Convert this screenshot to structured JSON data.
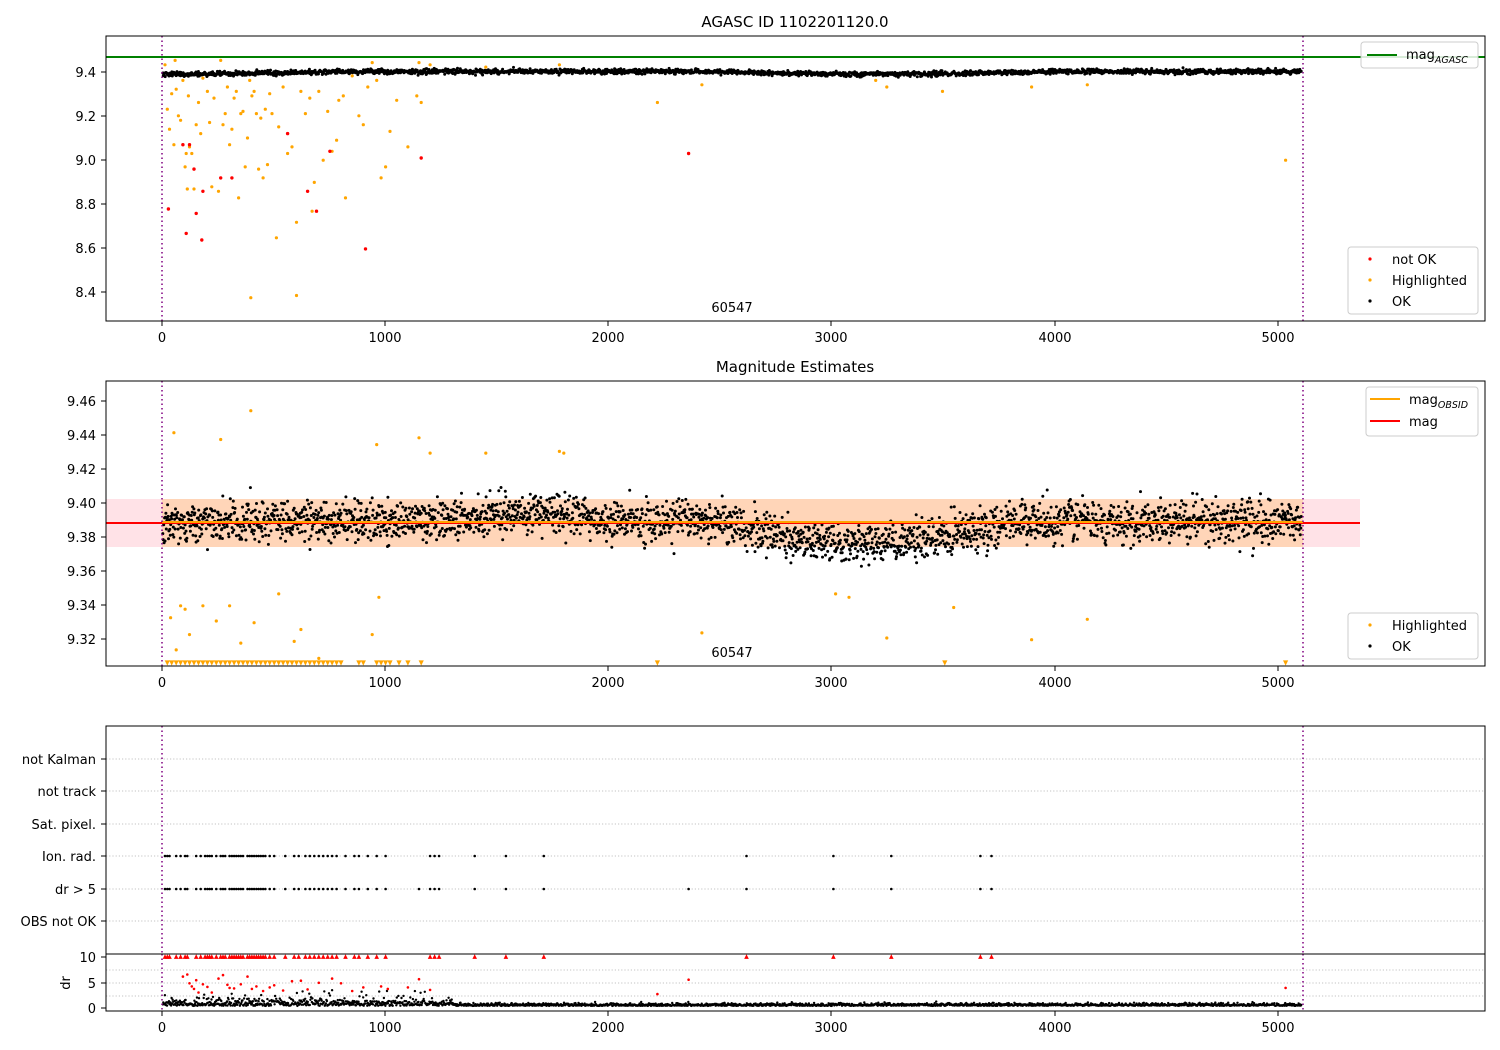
{
  "colors": {
    "ok": "#000000",
    "highlighted": "#ffa500",
    "not_ok": "#ff0000",
    "mag_agasc": "#008000",
    "mag_obsid": "#ffa500",
    "mag": "#ff0000",
    "band": "#ff9fb0",
    "obs_boundary": "#800080"
  },
  "chart_data": [
    {
      "type": "scatter",
      "title": "AGASC ID 1102201120.0",
      "xlabel": "",
      "ylabel": "",
      "xlim": [
        -255,
        5935
      ],
      "ylim": [
        8.265,
        9.55
      ],
      "xticks": [
        "0",
        "1000",
        "2000",
        "3000",
        "4000",
        "5000"
      ],
      "yticks": [
        "8.4",
        "8.6",
        "8.8",
        "9.0",
        "9.2",
        "9.4"
      ],
      "mag_agasc": 9.465,
      "obs_boundaries": [
        0,
        5110
      ],
      "obs_label": "60547",
      "obs_label_x": 2550,
      "legend_lines": [
        {
          "name": "mag_AGASC",
          "label": "mag",
          "sub": "AGASC",
          "color_key": "mag_agasc"
        }
      ],
      "legend_points": [
        {
          "name": "not OK",
          "color_key": "not_ok"
        },
        {
          "name": "Highlighted",
          "color_key": "highlighted"
        },
        {
          "name": "OK",
          "color_key": "ok"
        }
      ],
      "ok_series": {
        "x_range": [
          0,
          5110
        ],
        "n": 2400,
        "profile": "ok"
      },
      "highlighted_points": [
        [
          10,
          9.42
        ],
        [
          20,
          9.22
        ],
        [
          30,
          9.13
        ],
        [
          40,
          9.29
        ],
        [
          50,
          9.06
        ],
        [
          55,
          9.44
        ],
        [
          60,
          9.31
        ],
        [
          70,
          9.19
        ],
        [
          80,
          9.17
        ],
        [
          90,
          9.35
        ],
        [
          100,
          8.96
        ],
        [
          105,
          9.02
        ],
        [
          110,
          8.86
        ],
        [
          115,
          9.28
        ],
        [
          120,
          9.05
        ],
        [
          130,
          9.02
        ],
        [
          140,
          8.86
        ],
        [
          150,
          9.15
        ],
        [
          160,
          9.25
        ],
        [
          170,
          9.11
        ],
        [
          180,
          9.36
        ],
        [
          200,
          9.3
        ],
        [
          210,
          9.16
        ],
        [
          220,
          8.87
        ],
        [
          230,
          9.27
        ],
        [
          250,
          8.85
        ],
        [
          260,
          9.44
        ],
        [
          270,
          9.15
        ],
        [
          280,
          9.2
        ],
        [
          290,
          9.32
        ],
        [
          300,
          9.06
        ],
        [
          310,
          9.13
        ],
        [
          320,
          9.27
        ],
        [
          330,
          9.3
        ],
        [
          340,
          8.82
        ],
        [
          350,
          9.2
        ],
        [
          360,
          9.21
        ],
        [
          370,
          8.96
        ],
        [
          380,
          9.09
        ],
        [
          390,
          9.35
        ],
        [
          395,
          8.37
        ],
        [
          400,
          9.28
        ],
        [
          410,
          9.3
        ],
        [
          420,
          9.2
        ],
        [
          430,
          8.95
        ],
        [
          440,
          9.18
        ],
        [
          450,
          8.91
        ],
        [
          460,
          9.22
        ],
        [
          470,
          8.97
        ],
        [
          480,
          9.29
        ],
        [
          490,
          9.2
        ],
        [
          510,
          8.64
        ],
        [
          520,
          9.14
        ],
        [
          540,
          9.32
        ],
        [
          560,
          9.02
        ],
        [
          580,
          9.05
        ],
        [
          600,
          8.38
        ],
        [
          600,
          8.71
        ],
        [
          620,
          9.3
        ],
        [
          640,
          9.2
        ],
        [
          660,
          9.27
        ],
        [
          670,
          8.76
        ],
        [
          680,
          8.89
        ],
        [
          700,
          9.3
        ],
        [
          720,
          8.99
        ],
        [
          740,
          9.21
        ],
        [
          760,
          9.03
        ],
        [
          780,
          9.08
        ],
        [
          790,
          9.26
        ],
        [
          810,
          9.28
        ],
        [
          820,
          8.82
        ],
        [
          850,
          9.37
        ],
        [
          880,
          9.19
        ],
        [
          900,
          9.15
        ],
        [
          920,
          9.32
        ],
        [
          940,
          9.43
        ],
        [
          960,
          9.35
        ],
        [
          980,
          8.91
        ],
        [
          1000,
          8.96
        ],
        [
          1020,
          9.12
        ],
        [
          1050,
          9.26
        ],
        [
          1100,
          9.05
        ],
        [
          1140,
          9.28
        ],
        [
          1150,
          9.43
        ],
        [
          1160,
          9.25
        ],
        [
          1200,
          9.42
        ],
        [
          1450,
          9.41
        ],
        [
          1780,
          9.42
        ],
        [
          2220,
          9.25
        ],
        [
          2420,
          9.33
        ],
        [
          3200,
          9.35
        ],
        [
          3250,
          9.32
        ],
        [
          3500,
          9.3
        ],
        [
          3900,
          9.32
        ],
        [
          4150,
          9.33
        ],
        [
          5040,
          8.99
        ]
      ],
      "not_ok_points": [
        [
          25,
          8.77
        ],
        [
          90,
          9.06
        ],
        [
          105,
          8.66
        ],
        [
          120,
          9.06
        ],
        [
          140,
          8.95
        ],
        [
          150,
          8.75
        ],
        [
          175,
          8.63
        ],
        [
          180,
          8.85
        ],
        [
          260,
          8.91
        ],
        [
          310,
          8.91
        ],
        [
          560,
          9.11
        ],
        [
          650,
          8.85
        ],
        [
          690,
          8.76
        ],
        [
          750,
          9.03
        ],
        [
          910,
          8.59
        ],
        [
          1160,
          9.0
        ],
        [
          2360,
          9.02
        ]
      ]
    },
    {
      "type": "scatter",
      "title": "Magnitude Estimates",
      "xlabel": "",
      "ylabel": "",
      "xlim": [
        -255,
        5935
      ],
      "ylim": [
        9.3045,
        9.4725
      ],
      "xticks": [
        "0",
        "1000",
        "2000",
        "3000",
        "4000",
        "5000"
      ],
      "yticks": [
        "9.32",
        "9.34",
        "9.36",
        "9.38",
        "9.40",
        "9.42",
        "9.44",
        "9.46"
      ],
      "mag": 9.3885,
      "mag_band": [
        9.3745,
        9.4025
      ],
      "mag_band_xrange": [
        -255,
        5365
      ],
      "mag_obsid": 9.389,
      "mag_obsid_xrange": [
        0,
        5110
      ],
      "obs_boundaries": [
        0,
        5110
      ],
      "obs_label": "60547",
      "obs_label_x": 2550,
      "legend_lines": [
        {
          "name": "mag_OBSID",
          "label": "mag",
          "sub": "OBSID",
          "color_key": "mag_obsid"
        },
        {
          "name": "mag",
          "label": "mag",
          "sub": "",
          "color_key": "mag"
        }
      ],
      "legend_points": [
        {
          "name": "Highlighted",
          "color_key": "highlighted"
        },
        {
          "name": "OK",
          "color_key": "ok"
        }
      ],
      "ok_series": {
        "x_range": [
          0,
          5110
        ],
        "n": 2600,
        "profile": "estimate"
      },
      "highlighted_points": [
        [
          35,
          9.333
        ],
        [
          50,
          9.442
        ],
        [
          60,
          9.314
        ],
        [
          80,
          9.34
        ],
        [
          100,
          9.338
        ],
        [
          120,
          9.323
        ],
        [
          180,
          9.34
        ],
        [
          240,
          9.331
        ],
        [
          260,
          9.438
        ],
        [
          300,
          9.34
        ],
        [
          350,
          9.318
        ],
        [
          395,
          9.455
        ],
        [
          410,
          9.33
        ],
        [
          520,
          9.347
        ],
        [
          590,
          9.319
        ],
        [
          620,
          9.326
        ],
        [
          700,
          9.309
        ],
        [
          940,
          9.323
        ],
        [
          960,
          9.435
        ],
        [
          970,
          9.345
        ],
        [
          1150,
          9.439
        ],
        [
          1200,
          9.43
        ],
        [
          1450,
          9.43
        ],
        [
          1780,
          9.431
        ],
        [
          1800,
          9.43
        ],
        [
          2420,
          9.324
        ],
        [
          3020,
          9.347
        ],
        [
          3080,
          9.345
        ],
        [
          3250,
          9.321
        ],
        [
          3550,
          9.339
        ],
        [
          3900,
          9.32
        ],
        [
          4150,
          9.332
        ]
      ],
      "clipped_highlighted_x": [
        20,
        40,
        60,
        80,
        100,
        120,
        140,
        160,
        180,
        200,
        220,
        240,
        260,
        280,
        300,
        320,
        340,
        360,
        380,
        400,
        420,
        440,
        460,
        480,
        500,
        520,
        540,
        560,
        580,
        600,
        620,
        640,
        660,
        680,
        700,
        720,
        740,
        760,
        780,
        800,
        880,
        900,
        960,
        980,
        1000,
        1020,
        1060,
        1100,
        1160,
        2220,
        3510,
        5040
      ]
    },
    {
      "type": "scatter",
      "title": "",
      "xlabel": "",
      "ylabel": "",
      "xlim": [
        -255,
        5935
      ],
      "categories": [
        "not Kalman",
        "not track",
        "Sat. pixel.",
        "Ion. rad.",
        "dr > 5",
        "OBS not OK"
      ],
      "obs_boundaries": [
        0,
        5110
      ],
      "flag_points": {
        "Ion. rad.": [
          10,
          20,
          30,
          60,
          80,
          100,
          110,
          150,
          170,
          190,
          200,
          210,
          220,
          240,
          260,
          270,
          280,
          300,
          310,
          320,
          330,
          340,
          350,
          360,
          380,
          390,
          400,
          410,
          420,
          430,
          440,
          450,
          460,
          480,
          500,
          550,
          590,
          610,
          640,
          660,
          680,
          700,
          720,
          740,
          760,
          780,
          820,
          860,
          880,
          920,
          960,
          1000,
          1200,
          1220,
          1240,
          1400,
          1540,
          1710,
          2620,
          3010,
          3270,
          3670,
          3720
        ],
        "dr > 5": [
          10,
          20,
          30,
          60,
          80,
          100,
          110,
          150,
          170,
          190,
          200,
          210,
          220,
          240,
          260,
          270,
          280,
          300,
          310,
          320,
          330,
          340,
          350,
          360,
          380,
          390,
          400,
          410,
          420,
          430,
          440,
          450,
          460,
          480,
          500,
          550,
          590,
          610,
          640,
          660,
          680,
          700,
          720,
          740,
          760,
          780,
          820,
          860,
          880,
          920,
          960,
          1000,
          1150,
          1200,
          1220,
          1240,
          1400,
          1540,
          1710,
          2360,
          2620,
          3010,
          3270,
          3670,
          3720
        ]
      }
    },
    {
      "type": "scatter",
      "title": "",
      "xlabel": "",
      "ylabel": "dr",
      "xlim": [
        -255,
        5935
      ],
      "ylim": [
        -0.8,
        10.3
      ],
      "xticks": [
        "0",
        "1000",
        "2000",
        "3000",
        "4000",
        "5000"
      ],
      "yticks": [
        "0",
        "5",
        "10"
      ],
      "obs_boundaries": [
        0,
        5110
      ],
      "ok_series": {
        "x_range": [
          0,
          5110
        ],
        "n": 2200,
        "profile": "dr"
      },
      "capped_markers_x": [
        10,
        20,
        30,
        60,
        80,
        100,
        110,
        150,
        170,
        190,
        200,
        210,
        220,
        240,
        260,
        270,
        280,
        300,
        310,
        320,
        330,
        340,
        350,
        360,
        380,
        390,
        400,
        410,
        420,
        430,
        440,
        450,
        460,
        480,
        500,
        550,
        590,
        610,
        640,
        660,
        680,
        700,
        720,
        740,
        760,
        780,
        820,
        860,
        880,
        920,
        960,
        1000,
        1200,
        1220,
        1240,
        1400,
        1540,
        1710,
        2620,
        3010,
        3270,
        3670,
        3720
      ],
      "not_ok_points": [
        [
          90,
          5.9
        ],
        [
          110,
          6.3
        ],
        [
          120,
          4.6
        ],
        [
          130,
          4.0
        ],
        [
          140,
          3.5
        ],
        [
          150,
          5.2
        ],
        [
          160,
          2.8
        ],
        [
          180,
          4.4
        ],
        [
          200,
          3.9
        ],
        [
          220,
          2.8
        ],
        [
          250,
          5.5
        ],
        [
          270,
          6.2
        ],
        [
          290,
          4.3
        ],
        [
          300,
          3.7
        ],
        [
          320,
          3.6
        ],
        [
          350,
          4.4
        ],
        [
          380,
          5.9
        ],
        [
          400,
          3.5
        ],
        [
          420,
          4.0
        ],
        [
          450,
          3.1
        ],
        [
          480,
          3.8
        ],
        [
          500,
          4.2
        ],
        [
          540,
          3.2
        ],
        [
          580,
          5.0
        ],
        [
          620,
          5.1
        ],
        [
          650,
          3.4
        ],
        [
          700,
          4.7
        ],
        [
          760,
          5.5
        ],
        [
          800,
          4.6
        ],
        [
          850,
          3.1
        ],
        [
          900,
          3.8
        ],
        [
          980,
          4.0
        ],
        [
          1010,
          3.5
        ],
        [
          1100,
          3.8
        ],
        [
          1150,
          5.4
        ],
        [
          1200,
          3.3
        ],
        [
          2220,
          2.5
        ],
        [
          2360,
          5.3
        ],
        [
          5040,
          3.7
        ]
      ]
    }
  ]
}
